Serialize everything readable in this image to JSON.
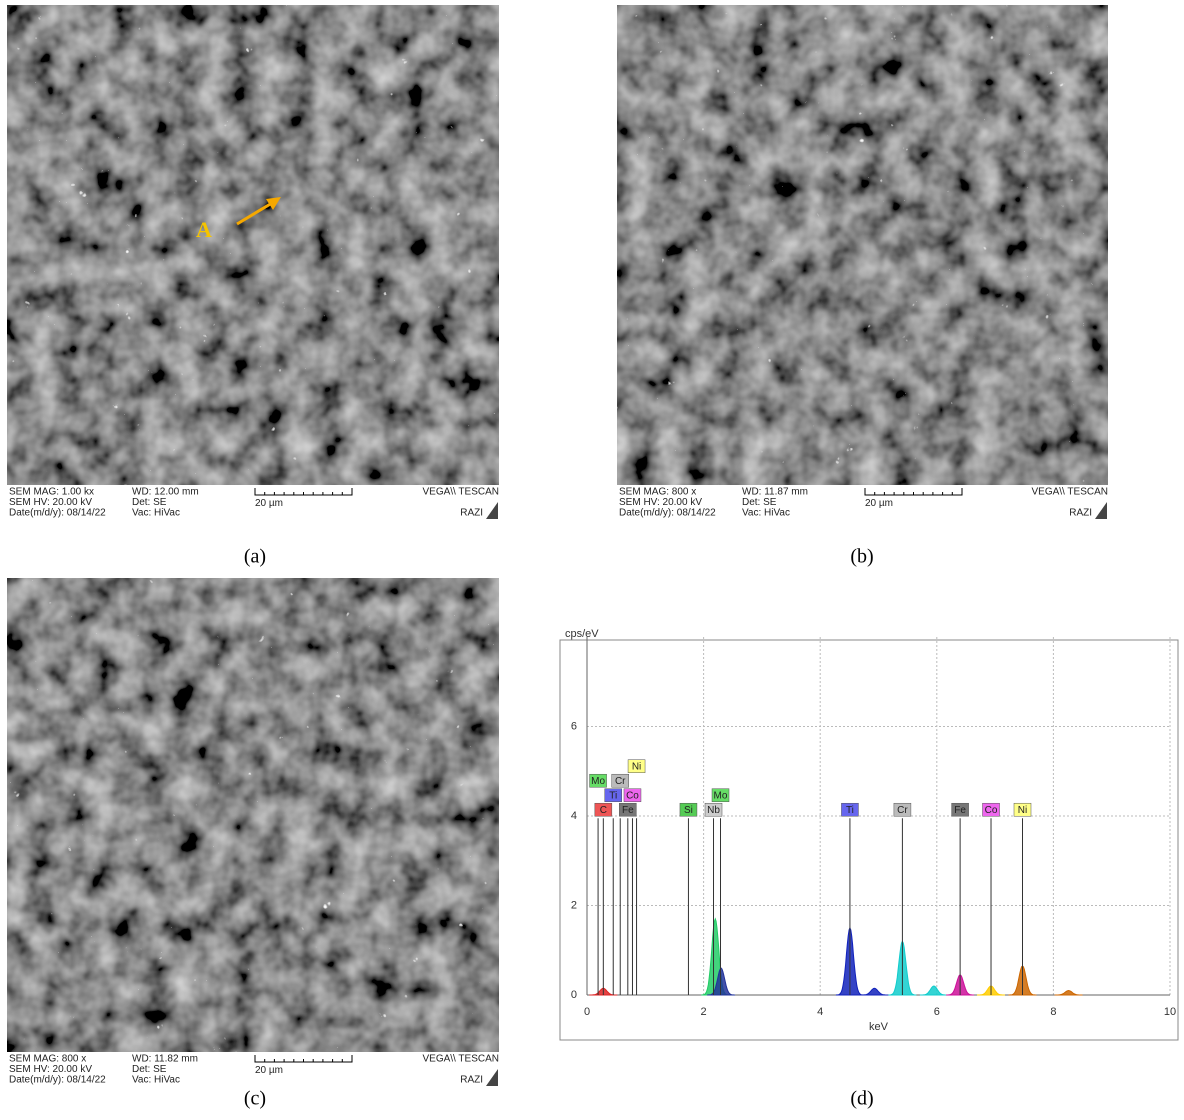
{
  "panels": [
    {
      "caption": "(a)",
      "annotation": "A",
      "info": {
        "mag": "SEM MAG: 1.00 kx",
        "wd": "WD: 12.00 mm",
        "brand": "VEGA\\\\ TESCAN",
        "hv": "SEM HV: 20.00 kV",
        "det": "Det: SE",
        "scale": "20 µm",
        "date": "Date(m/d/y): 08/14/22",
        "vac": "Vac: HiVac",
        "lab": "RAZI"
      }
    },
    {
      "caption": "(b)",
      "info": {
        "mag": "SEM MAG: 800 x",
        "wd": "WD: 11.87 mm",
        "brand": "VEGA\\\\ TESCAN",
        "hv": "SEM HV: 20.00 kV",
        "det": "Det: SE",
        "scale": "20 µm",
        "date": "Date(m/d/y): 08/14/22",
        "vac": "Vac: HiVac",
        "lab": "RAZI"
      }
    },
    {
      "caption": "(c)",
      "info": {
        "mag": "SEM MAG: 800 x",
        "wd": "WD: 11.82 mm",
        "brand": "VEGA\\\\ TESCAN",
        "hv": "SEM HV: 20.00 kV",
        "det": "Det: SE",
        "scale": "20 µm",
        "date": "Date(m/d/y): 08/14/22",
        "vac": "Vac: HiVac",
        "lab": "RAZI"
      }
    },
    {
      "caption": "(d)",
      "chart_data": {
        "type": "spectrum",
        "ylabel": "cps/eV",
        "xlabel": "keV",
        "xlim": [
          0,
          10
        ],
        "ylim": [
          0,
          8
        ],
        "xticks": [
          0,
          2,
          4,
          6,
          8,
          10
        ],
        "yticks": [
          0,
          2,
          4,
          6
        ],
        "grid": true,
        "peaks": [
          {
            "name": "C",
            "x": 0.28,
            "value": 0.15,
            "color": "#dd2222"
          },
          {
            "name": "Mo",
            "x": 2.2,
            "value": 1.7,
            "color": "#22cc66"
          },
          {
            "name": "Nb",
            "x": 2.3,
            "value": 0.6,
            "color": "#223399"
          },
          {
            "name": "Ti",
            "x": 4.51,
            "value": 1.5,
            "color": "#1122bb"
          },
          {
            "name": "Ti",
            "x": 4.93,
            "value": 0.15,
            "color": "#1122bb"
          },
          {
            "name": "Cr",
            "x": 5.41,
            "value": 1.2,
            "color": "#11cccc"
          },
          {
            "name": "Cr",
            "x": 5.95,
            "value": 0.2,
            "color": "#11cccc"
          },
          {
            "name": "Fe",
            "x": 6.4,
            "value": 0.45,
            "color": "#cc1199"
          },
          {
            "name": "Co",
            "x": 6.93,
            "value": 0.2,
            "color": "#ffcc00"
          },
          {
            "name": "Ni",
            "x": 7.47,
            "value": 0.65,
            "color": "#cc6600"
          },
          {
            "name": "Ni",
            "x": 8.26,
            "value": 0.1,
            "color": "#cc6600"
          }
        ],
        "markers": [
          {
            "label": "C",
            "x": 0.28,
            "value": 3.95,
            "color": "#ee5555"
          },
          {
            "label": "Fe",
            "x": 0.7,
            "value": 3.95,
            "color": "#777777"
          },
          {
            "label": "Ti",
            "x": 0.45,
            "value": 3.95,
            "color": "#6666ee"
          },
          {
            "label": "Co",
            "x": 0.78,
            "value": 3.95,
            "color": "#ee66ee"
          },
          {
            "label": "Cr",
            "x": 0.57,
            "value": 3.95,
            "color": "#bbbbbb"
          },
          {
            "label": "Ni",
            "x": 0.85,
            "value": 3.95,
            "color": "#ffff88"
          },
          {
            "label": "Mo",
            "x": 0.19,
            "value": 3.95,
            "color": "#66dd66"
          },
          {
            "label": "Si",
            "x": 1.74,
            "value": 3.95,
            "color": "#55cc55"
          },
          {
            "label": "Nb",
            "x": 2.17,
            "value": 3.95,
            "color": "#cccccc"
          },
          {
            "label": "Mo",
            "x": 2.29,
            "value": 3.95,
            "color": "#66dd66"
          },
          {
            "label": "Ti",
            "x": 4.51,
            "value": 3.95,
            "color": "#6666ee"
          },
          {
            "label": "Cr",
            "x": 5.41,
            "value": 3.95,
            "color": "#bbbbbb"
          },
          {
            "label": "Fe",
            "x": 6.4,
            "value": 3.95,
            "color": "#777777"
          },
          {
            "label": "Co",
            "x": 6.93,
            "value": 3.95,
            "color": "#ee66ee"
          },
          {
            "label": "Ni",
            "x": 7.47,
            "value": 3.95,
            "color": "#ffff88"
          }
        ]
      }
    }
  ]
}
